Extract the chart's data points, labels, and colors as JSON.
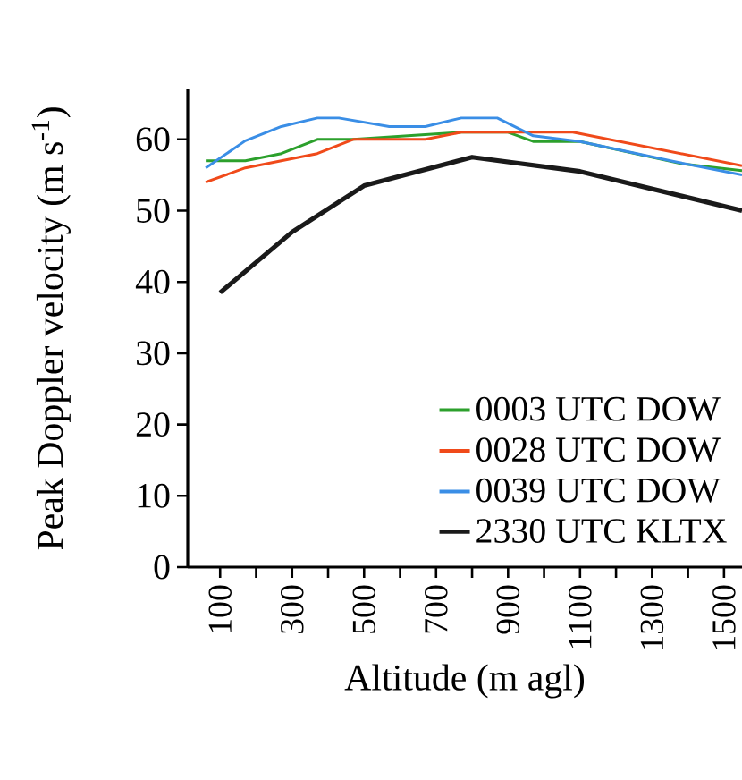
{
  "chart_data": {
    "type": "line",
    "xlabel": "Altitude (m agl)",
    "ylabel": "Peak Doppler velocity (m s$^{-1}$)",
    "xlim": [
      10,
      1550
    ],
    "ylim": [
      0,
      67
    ],
    "xticks": [
      100,
      {
        "value": 200,
        "label": null
      },
      300,
      {
        "value": 400,
        "label": null
      },
      500,
      {
        "value": 600,
        "label": null
      },
      700,
      {
        "value": 800,
        "label": null
      },
      900,
      {
        "value": 1000,
        "label": null
      },
      1100,
      {
        "value": 1200,
        "label": null
      },
      1300,
      {
        "value": 1400,
        "label": null
      },
      1500
    ],
    "yticks": [
      0,
      10,
      20,
      30,
      40,
      50,
      60
    ],
    "legend": "bottom right",
    "grid": false,
    "marker": "none",
    "line_style": "solid",
    "series": [
      {
        "name": "0003 UTC DOW",
        "color": "#2ca02c",
        "x": [
          60,
          170,
          270,
          370,
          470,
          770,
          900,
          970,
          1100,
          1380,
          1550
        ],
        "values": [
          57,
          57,
          58,
          60,
          60,
          61,
          61,
          59.7,
          59.7,
          56.6,
          55.6
        ]
      },
      {
        "name": "0028 UTC DOW",
        "color": "#f04a1a",
        "x": [
          60,
          170,
          370,
          470,
          670,
          770,
          1080,
          1550
        ],
        "values": [
          54,
          56,
          58,
          60,
          60,
          61,
          61,
          56.3
        ]
      },
      {
        "name": "0039 UTC DOW",
        "color": "#3a8ee6",
        "x": [
          60,
          170,
          270,
          370,
          430,
          570,
          670,
          770,
          870,
          970,
          1100,
          1360,
          1550
        ],
        "values": [
          56,
          59.8,
          61.8,
          63,
          63,
          61.8,
          61.8,
          63,
          63,
          60.5,
          59.7,
          56.9,
          55
        ]
      },
      {
        "name": "2330 UTC KLTX",
        "color": "#1a1a1a",
        "x": [
          100,
          300,
          500,
          800,
          1100,
          1550
        ],
        "values": [
          38.5,
          47,
          53.5,
          57.5,
          55.5,
          50
        ]
      }
    ]
  }
}
